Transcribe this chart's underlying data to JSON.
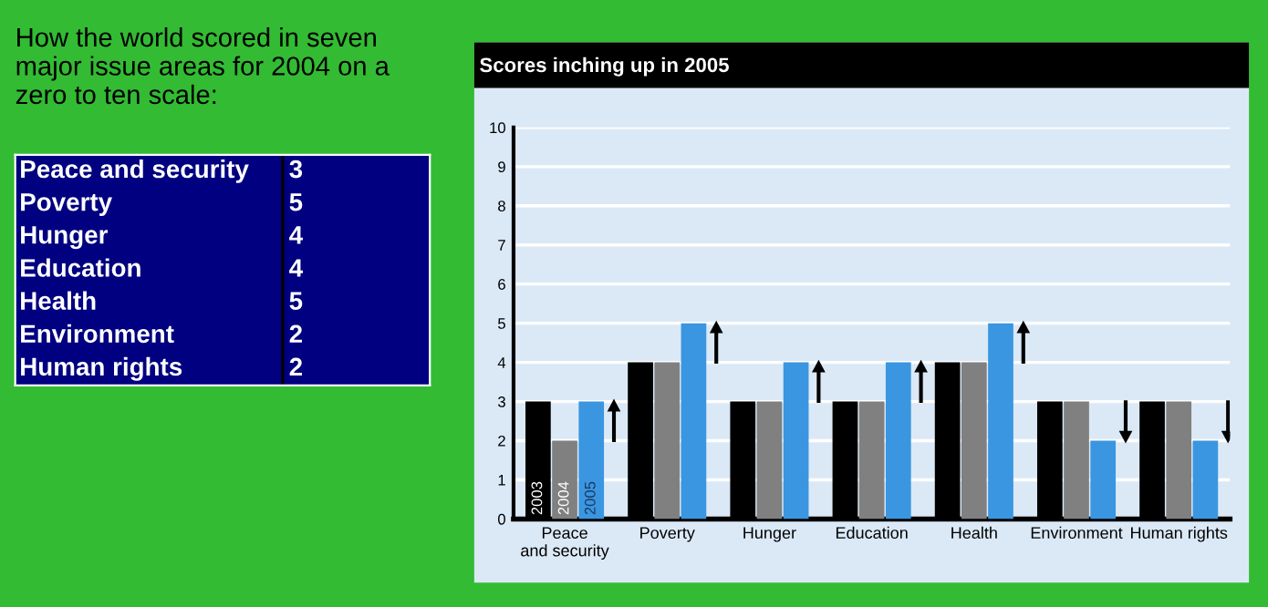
{
  "chart_data": [
    {
      "type": "other",
      "title": "How the world scored in seven\nmajor issue areas for 2004 on a\nzero to ten scale:",
      "categories": [
        "Peace and security",
        "Poverty",
        "Hunger",
        "Education",
        "Health",
        "Environment",
        "Human rights"
      ],
      "values": [
        3,
        5,
        4,
        4,
        5,
        2,
        2
      ],
      "data_labels": true,
      "color": "#000080"
    },
    {
      "type": "bar",
      "title": "Scores inching up in 2005",
      "categories": [
        "Peace\nand security",
        "Poverty",
        "Hunger",
        "Education",
        "Health",
        "Environment",
        "Human rights"
      ],
      "series": [
        {
          "name": "2003",
          "color": "#000000",
          "values": [
            3,
            4,
            3,
            3,
            4,
            3,
            3
          ]
        },
        {
          "name": "2004",
          "color": "#808080",
          "values": [
            2,
            4,
            3,
            3,
            4,
            3,
            3
          ]
        },
        {
          "name": "2005",
          "color": "#3a96e0",
          "values": [
            3,
            5,
            4,
            4,
            5,
            2,
            2
          ]
        }
      ],
      "ylim": [
        0,
        10
      ],
      "yticks": [
        0,
        1,
        2,
        3,
        4,
        5,
        6,
        7,
        8,
        9,
        10
      ],
      "grid": "y",
      "legend": false
    }
  ]
}
